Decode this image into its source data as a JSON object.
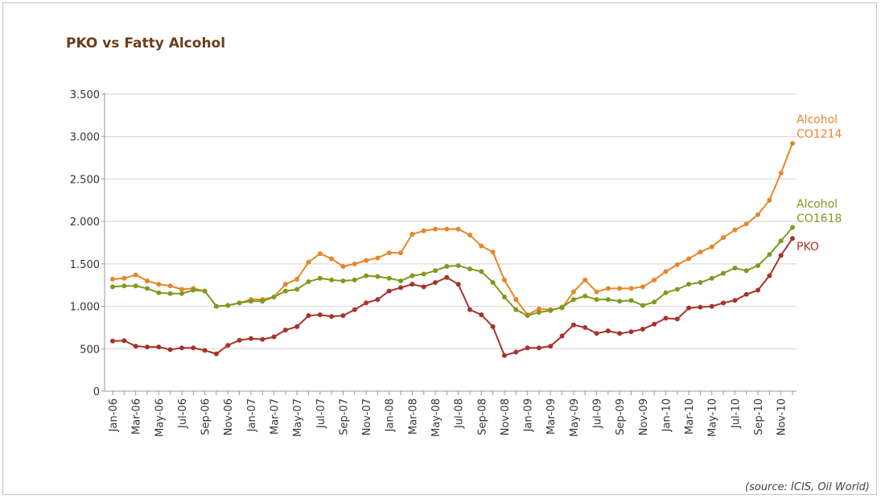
{
  "chart_data": {
    "type": "line",
    "title": "PKO vs Fatty Alcohol",
    "source": "(source: ICIS, Oil World)",
    "categories": [
      "Jan-06",
      null,
      "Mar-06",
      null,
      "May-06",
      null,
      "Jul-06",
      null,
      "Sep-06",
      null,
      "Nov-06",
      null,
      "Jan-07",
      null,
      "Mar-07",
      null,
      "May-07",
      null,
      "Jul-07",
      null,
      "Sep-07",
      null,
      "Nov-07",
      null,
      "Jan-08",
      null,
      "Mar-08",
      null,
      "May-08",
      null,
      "Jul-08",
      null,
      "Sep-08",
      null,
      "Nov-08",
      null,
      "Jan-09",
      null,
      "Mar-09",
      null,
      "May-09",
      null,
      "Jul-09",
      null,
      "Sep-09",
      null,
      "Nov-09",
      null,
      "Jan-10",
      null,
      "Mar-10",
      null,
      "May-10",
      null,
      "Jul-10",
      null,
      "Sep-10",
      null,
      "Nov-10",
      null
    ],
    "series": [
      {
        "name": "Alcohol CO1214",
        "color": "#e8862a",
        "values": [
          1320,
          1330,
          1370,
          1300,
          1260,
          1240,
          1200,
          1210,
          1180,
          1000,
          1010,
          1040,
          1080,
          1080,
          1110,
          1260,
          1320,
          1520,
          1620,
          1560,
          1470,
          1500,
          1540,
          1570,
          1630,
          1630,
          1850,
          1890,
          1910,
          1910,
          1910,
          1840,
          1710,
          1640,
          1310,
          1080,
          900,
          970,
          960,
          980,
          1170,
          1310,
          1170,
          1210,
          1210,
          1210,
          1230,
          1310,
          1410,
          1490,
          1560,
          1640,
          1700,
          1810,
          1900,
          1970,
          2080,
          2250,
          2570,
          2920
        ]
      },
      {
        "name": "Alcohol CO1618",
        "color": "#7f9a1e",
        "values": [
          1230,
          1240,
          1240,
          1210,
          1160,
          1150,
          1150,
          1190,
          1180,
          1000,
          1010,
          1040,
          1060,
          1060,
          1110,
          1180,
          1200,
          1290,
          1330,
          1310,
          1300,
          1310,
          1360,
          1350,
          1330,
          1300,
          1360,
          1380,
          1420,
          1470,
          1480,
          1440,
          1410,
          1280,
          1110,
          960,
          890,
          930,
          950,
          990,
          1080,
          1120,
          1080,
          1080,
          1060,
          1070,
          1010,
          1050,
          1160,
          1200,
          1260,
          1280,
          1330,
          1390,
          1450,
          1420,
          1480,
          1610,
          1770,
          1930
        ]
      },
      {
        "name": "PKO",
        "color": "#a8322a",
        "values": [
          590,
          595,
          530,
          520,
          520,
          490,
          510,
          510,
          480,
          440,
          540,
          600,
          620,
          610,
          640,
          720,
          760,
          890,
          900,
          880,
          890,
          960,
          1040,
          1080,
          1180,
          1220,
          1260,
          1230,
          1280,
          1340,
          1260,
          960,
          900,
          760,
          420,
          460,
          510,
          510,
          530,
          650,
          780,
          750,
          680,
          710,
          680,
          700,
          730,
          790,
          860,
          850,
          980,
          990,
          1000,
          1040,
          1070,
          1140,
          1190,
          1360,
          1600,
          1800
        ]
      }
    ],
    "ylim": [
      0,
      3500
    ],
    "yticks": [
      0,
      500,
      {
        "value": 1000,
        "label": "1.000"
      },
      {
        "value": 1500,
        "label": "1.500"
      },
      {
        "value": 2000,
        "label": "2.000"
      },
      {
        "value": 2500,
        "label": "2.500"
      },
      {
        "value": 3000,
        "label": "3.000"
      },
      {
        "value": 3500,
        "label": "3.500"
      }
    ],
    "grid": true
  }
}
